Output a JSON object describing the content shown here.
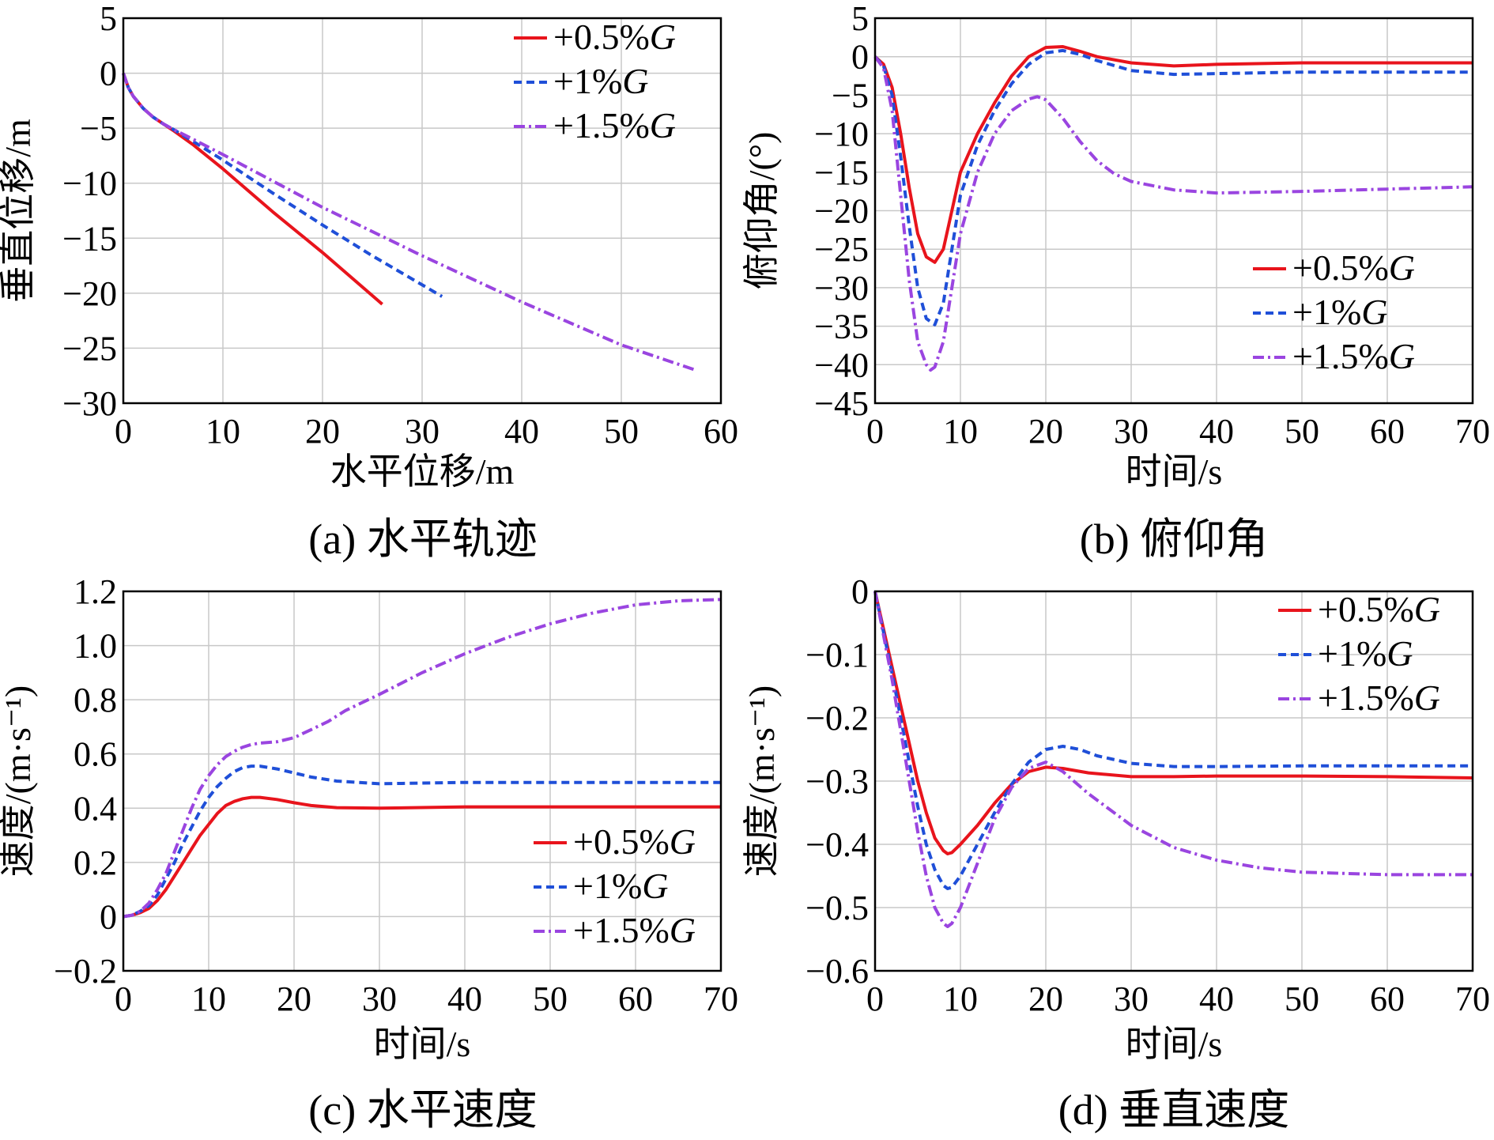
{
  "colors": {
    "s05": "#e8141c",
    "s1": "#1f4fd8",
    "s15": "#9a45e0"
  },
  "legend_labels": [
    "+0.5%G",
    "+1%G",
    "+1.5%G"
  ],
  "chart_data": [
    {
      "id": "a",
      "type": "line",
      "caption": "(a) 水平轨迹",
      "xlabel": "水平位移/m",
      "ylabel": "垂直位移/m",
      "xlim": [
        0,
        60
      ],
      "ylim": [
        -30,
        5
      ],
      "xticks": [
        0,
        10,
        20,
        30,
        40,
        50,
        60
      ],
      "yticks": [
        5,
        0,
        -5,
        -10,
        -15,
        -20,
        -25,
        -30
      ],
      "ytick_labels": [
        "5",
        "0",
        "−5",
        "−10",
        "−15",
        "−20",
        "−25",
        "−30"
      ],
      "legend": "top-right",
      "series": [
        {
          "name": "+0.5%G",
          "style": "solid",
          "x": [
            0,
            0.5,
            1,
            2,
            3,
            4,
            5,
            7,
            10,
            15,
            20,
            26
          ],
          "y": [
            0,
            -1.3,
            -2.1,
            -3.2,
            -4.0,
            -4.6,
            -5.2,
            -6.5,
            -8.7,
            -12.6,
            -16.3,
            -21
          ]
        },
        {
          "name": "+1%G",
          "style": "dashed",
          "x": [
            0,
            0.5,
            1,
            2,
            3,
            4,
            5,
            7,
            10,
            15,
            20,
            25,
            32
          ],
          "y": [
            0,
            -1.3,
            -2.1,
            -3.2,
            -4.0,
            -4.6,
            -5.1,
            -6.2,
            -7.9,
            -10.9,
            -13.8,
            -16.6,
            -20.3
          ]
        },
        {
          "name": "+1.5%G",
          "style": "dashdot",
          "x": [
            0,
            0.5,
            1,
            2,
            3,
            4,
            5,
            7,
            10,
            15,
            20,
            30,
            40,
            50,
            57.5
          ],
          "y": [
            0,
            -1.3,
            -2.1,
            -3.2,
            -4.0,
            -4.6,
            -5.1,
            -6.0,
            -7.4,
            -9.8,
            -12.2,
            -16.6,
            -20.8,
            -24.7,
            -27.0
          ]
        }
      ]
    },
    {
      "id": "b",
      "type": "line",
      "caption": "(b) 俯仰角",
      "xlabel": "时间/s",
      "ylabel": "俯仰角/(°)",
      "xlim": [
        0,
        70
      ],
      "ylim": [
        -45,
        5
      ],
      "xticks": [
        0,
        10,
        20,
        30,
        40,
        50,
        60,
        70
      ],
      "yticks": [
        5,
        0,
        -5,
        -10,
        -15,
        -20,
        -25,
        -30,
        -35,
        -40,
        -45
      ],
      "ytick_labels": [
        "5",
        "0",
        "−5",
        "−10",
        "−15",
        "−20",
        "−25",
        "−30",
        "−35",
        "−40",
        "−45"
      ],
      "legend": "bottom-right",
      "series": [
        {
          "name": "+0.5%G",
          "style": "solid",
          "x": [
            0,
            1,
            2,
            3,
            4,
            5,
            6,
            7,
            8,
            9,
            10,
            12,
            14,
            16,
            18,
            20,
            22,
            24,
            26,
            30,
            35,
            40,
            50,
            60,
            70
          ],
          "y": [
            0,
            -1,
            -4,
            -10,
            -17,
            -23,
            -26,
            -26.7,
            -25,
            -20,
            -15,
            -10,
            -6,
            -2.5,
            0,
            1.2,
            1.3,
            0.7,
            0,
            -0.8,
            -1.2,
            -1,
            -0.8,
            -0.8,
            -0.8
          ]
        },
        {
          "name": "+1%G",
          "style": "dashed",
          "x": [
            0,
            1,
            2,
            3,
            4,
            5,
            6,
            7,
            8,
            9,
            10,
            12,
            14,
            16,
            18,
            20,
            22,
            24,
            26,
            30,
            35,
            40,
            50,
            60,
            70
          ],
          "y": [
            0,
            -1.2,
            -5,
            -13,
            -22,
            -30,
            -34,
            -34.8,
            -32,
            -25,
            -18,
            -11.5,
            -7,
            -3.5,
            -1,
            0.5,
            0.8,
            0.3,
            -0.5,
            -1.8,
            -2.3,
            -2.2,
            -2,
            -2,
            -2
          ]
        },
        {
          "name": "+1.5%G",
          "style": "dashdot",
          "x": [
            0,
            1,
            2,
            3,
            4,
            5,
            6,
            6.5,
            7,
            8,
            9,
            10,
            12,
            14,
            16,
            18,
            19,
            20,
            22,
            24,
            26,
            28,
            30,
            35,
            40,
            50,
            60,
            70
          ],
          "y": [
            0,
            -1.5,
            -7,
            -18,
            -29,
            -37,
            -40,
            -40.7,
            -40.3,
            -37,
            -30,
            -23,
            -15,
            -10,
            -7,
            -5.5,
            -5.2,
            -5.6,
            -8,
            -11,
            -13.5,
            -15.2,
            -16.2,
            -17.3,
            -17.7,
            -17.5,
            -17.2,
            -16.9
          ]
        }
      ]
    },
    {
      "id": "c",
      "type": "line",
      "caption": "(c) 水平速度",
      "xlabel": "时间/s",
      "ylabel": "速度/(m·s⁻¹)",
      "xlim": [
        0,
        70
      ],
      "ylim": [
        -0.2,
        1.2
      ],
      "xticks": [
        0,
        10,
        20,
        30,
        40,
        50,
        60,
        70
      ],
      "yticks": [
        1.2,
        1.0,
        0.8,
        0.6,
        0.4,
        0.2,
        0,
        -0.2
      ],
      "ytick_labels": [
        "1.2",
        "1.0",
        "0.8",
        "0.6",
        "0.4",
        "0.2",
        "0",
        "−0.2"
      ],
      "legend": "bottom-right",
      "series": [
        {
          "name": "+0.5%G",
          "style": "solid",
          "x": [
            0,
            1,
            2,
            3,
            4,
            5,
            6,
            7,
            8,
            9,
            10,
            11,
            12,
            13,
            14,
            15,
            16,
            18,
            20,
            22,
            25,
            30,
            40,
            50,
            60,
            70
          ],
          "y": [
            0,
            0.005,
            0.015,
            0.03,
            0.06,
            0.1,
            0.15,
            0.2,
            0.25,
            0.3,
            0.34,
            0.38,
            0.41,
            0.425,
            0.435,
            0.44,
            0.44,
            0.432,
            0.42,
            0.41,
            0.402,
            0.4,
            0.405,
            0.405,
            0.405,
            0.405
          ]
        },
        {
          "name": "+1%G",
          "style": "dashed",
          "x": [
            0,
            1,
            2,
            3,
            4,
            5,
            6,
            7,
            8,
            9,
            10,
            11,
            12,
            13,
            14,
            15,
            16,
            18,
            20,
            22,
            25,
            30,
            40,
            50,
            60,
            70
          ],
          "y": [
            0,
            0.005,
            0.02,
            0.04,
            0.08,
            0.14,
            0.2,
            0.27,
            0.33,
            0.39,
            0.44,
            0.48,
            0.51,
            0.535,
            0.55,
            0.555,
            0.555,
            0.545,
            0.53,
            0.515,
            0.5,
            0.49,
            0.495,
            0.495,
            0.495,
            0.495
          ]
        },
        {
          "name": "+1.5%G",
          "style": "dashdot",
          "x": [
            0,
            1,
            2,
            3,
            4,
            5,
            6,
            7,
            8,
            9,
            10,
            11,
            12,
            13,
            14,
            15,
            16,
            18,
            20,
            22,
            24,
            26,
            28,
            30,
            35,
            40,
            45,
            50,
            55,
            60,
            65,
            70
          ],
          "y": [
            0,
            0.005,
            0.02,
            0.05,
            0.1,
            0.16,
            0.24,
            0.32,
            0.4,
            0.47,
            0.52,
            0.56,
            0.59,
            0.61,
            0.625,
            0.635,
            0.64,
            0.645,
            0.66,
            0.69,
            0.72,
            0.76,
            0.79,
            0.82,
            0.9,
            0.97,
            1.03,
            1.08,
            1.12,
            1.15,
            1.165,
            1.17
          ]
        }
      ]
    },
    {
      "id": "d",
      "type": "line",
      "caption": "(d) 垂直速度",
      "xlabel": "时间/s",
      "ylabel": "速度/(m·s⁻¹)",
      "xlim": [
        0,
        70
      ],
      "ylim": [
        -0.6,
        0
      ],
      "xticks": [
        0,
        10,
        20,
        30,
        40,
        50,
        60,
        70
      ],
      "yticks": [
        0,
        -0.1,
        -0.2,
        -0.3,
        -0.4,
        -0.5,
        -0.6
      ],
      "ytick_labels": [
        "0",
        "−0.1",
        "−0.2",
        "−0.3",
        "−0.4",
        "−0.5",
        "−0.6"
      ],
      "legend": "top-right",
      "series": [
        {
          "name": "+0.5%G",
          "style": "solid",
          "x": [
            0,
            1,
            2,
            3,
            4,
            5,
            6,
            7,
            8,
            8.5,
            9,
            10,
            12,
            14,
            16,
            18,
            20,
            22,
            25,
            30,
            35,
            40,
            50,
            60,
            70
          ],
          "y": [
            0,
            -0.06,
            -0.12,
            -0.18,
            -0.24,
            -0.3,
            -0.35,
            -0.39,
            -0.41,
            -0.415,
            -0.413,
            -0.4,
            -0.37,
            -0.335,
            -0.305,
            -0.285,
            -0.278,
            -0.28,
            -0.287,
            -0.293,
            -0.293,
            -0.292,
            -0.292,
            -0.293,
            -0.295
          ]
        },
        {
          "name": "+1%G",
          "style": "dashed",
          "x": [
            0,
            1,
            2,
            3,
            4,
            5,
            6,
            7,
            8,
            8.5,
            9,
            10,
            12,
            14,
            16,
            18,
            20,
            22,
            24,
            26,
            30,
            35,
            40,
            50,
            60,
            70
          ],
          "y": [
            0,
            -0.065,
            -0.13,
            -0.2,
            -0.27,
            -0.34,
            -0.4,
            -0.44,
            -0.465,
            -0.47,
            -0.468,
            -0.45,
            -0.4,
            -0.35,
            -0.305,
            -0.27,
            -0.25,
            -0.245,
            -0.25,
            -0.26,
            -0.272,
            -0.277,
            -0.277,
            -0.276,
            -0.276,
            -0.276
          ]
        },
        {
          "name": "+1.5%G",
          "style": "dashdot",
          "x": [
            0,
            1,
            2,
            3,
            4,
            5,
            6,
            7,
            8,
            8.5,
            9,
            10,
            12,
            14,
            16,
            18,
            20,
            22,
            25,
            30,
            35,
            40,
            45,
            50,
            60,
            70
          ],
          "y": [
            0,
            -0.07,
            -0.14,
            -0.22,
            -0.3,
            -0.38,
            -0.45,
            -0.5,
            -0.525,
            -0.53,
            -0.525,
            -0.5,
            -0.43,
            -0.36,
            -0.31,
            -0.28,
            -0.27,
            -0.285,
            -0.32,
            -0.37,
            -0.405,
            -0.425,
            -0.437,
            -0.444,
            -0.448,
            -0.448
          ]
        }
      ]
    }
  ]
}
